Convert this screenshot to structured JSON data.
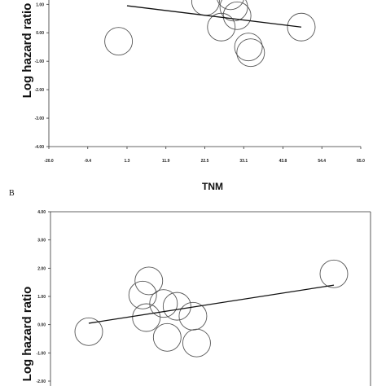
{
  "chart_data": [
    {
      "type": "scatter",
      "panel_label": "",
      "xlabel": "TNM",
      "ylabel": "Log hazard ratio",
      "xlim": [
        -20.0,
        65.0
      ],
      "ylim": [
        -4.0,
        1.0
      ],
      "x_ticks": [
        "-20.0",
        "-9.4",
        "1.3",
        "11.9",
        "22.5",
        "33.1",
        "43.8",
        "54.4",
        "65.0"
      ],
      "y_ticks": [
        "1.00",
        "0.00",
        "-1.00",
        "-2.00",
        "-3.00",
        "-4.00"
      ],
      "points": [
        {
          "x": -1.0,
          "y": -0.3
        },
        {
          "x": 22.7,
          "y": 1.1
        },
        {
          "x": 27.0,
          "y": 0.2
        },
        {
          "x": 29.5,
          "y": 1.3
        },
        {
          "x": 30.4,
          "y": 0.9
        },
        {
          "x": 31.3,
          "y": 0.6
        },
        {
          "x": 34.4,
          "y": -0.5
        },
        {
          "x": 35.0,
          "y": -0.7
        },
        {
          "x": 48.8,
          "y": 0.2
        }
      ],
      "fit_line": {
        "x": [
          1.3,
          48.8
        ],
        "y": [
          0.95,
          0.2
        ]
      },
      "grid": false
    },
    {
      "type": "scatter",
      "panel_label": "B",
      "xlabel": "",
      "ylabel": "Log hazard ratio",
      "ylim": [
        -2.0,
        4.0
      ],
      "y_ticks": [
        "4.00",
        "3.00",
        "2.00",
        "1.00",
        "0.00",
        "-1.00",
        "-2.00"
      ],
      "points": [
        {
          "x": 0.0,
          "y": -0.25
        },
        {
          "x": 0.22,
          "y": 1.05
        },
        {
          "x": 0.245,
          "y": 1.55
        },
        {
          "x": 0.235,
          "y": 0.25
        },
        {
          "x": 0.305,
          "y": 0.75
        },
        {
          "x": 0.32,
          "y": -0.45
        },
        {
          "x": 0.36,
          "y": 0.65
        },
        {
          "x": 0.425,
          "y": 0.3
        },
        {
          "x": 0.44,
          "y": -0.65
        },
        {
          "x": 1.0,
          "y": 1.8
        }
      ],
      "fit_line": {
        "x": [
          0.0,
          1.0
        ],
        "y": [
          0.05,
          1.4
        ]
      },
      "grid": false
    }
  ]
}
